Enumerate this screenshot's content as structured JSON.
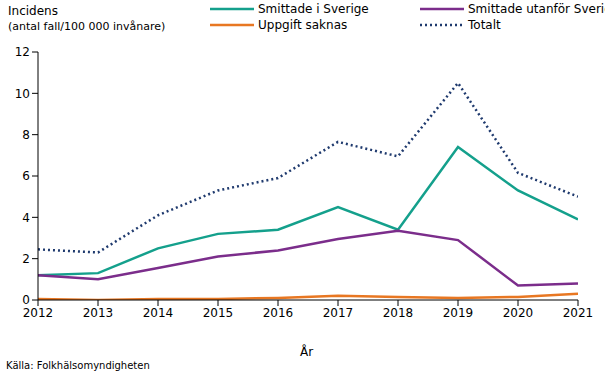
{
  "chart_data": {
    "type": "line",
    "y_label": "Incidens",
    "y_label_note": "(antal fall/100 000 invånare)",
    "x_label": "År",
    "source": "Källa: Folkhälsomyndigheten",
    "x": [
      2012,
      2013,
      2014,
      2015,
      2016,
      2017,
      2018,
      2019,
      2020,
      2021
    ],
    "xlim": [
      2012,
      2021
    ],
    "xticks": [
      2012,
      2013,
      2014,
      2015,
      2016,
      2017,
      2018,
      2019,
      2020,
      2021
    ],
    "ylim": [
      0,
      12
    ],
    "yticks": [
      0,
      2,
      4,
      6,
      8,
      10,
      12
    ],
    "grid": false,
    "legend": "top",
    "series": [
      {
        "name": "Smittade i Sverige",
        "color": "#14a08c",
        "line_style": "solid",
        "values": [
          1.2,
          1.3,
          2.5,
          3.2,
          3.4,
          4.5,
          3.4,
          7.4,
          5.3,
          3.9
        ]
      },
      {
        "name": "Smittade utanför Sverige",
        "color": "#7b2d8b",
        "line_style": "solid",
        "values": [
          1.2,
          1.0,
          1.55,
          2.1,
          2.4,
          2.95,
          3.35,
          2.9,
          0.7,
          0.8
        ]
      },
      {
        "name": "Uppgift saknas",
        "color": "#e87722",
        "line_style": "solid",
        "values": [
          0.05,
          0.0,
          0.05,
          0.05,
          0.1,
          0.2,
          0.15,
          0.1,
          0.15,
          0.3
        ]
      },
      {
        "name": "Totalt",
        "color": "#1f3a6e",
        "line_style": "dotted",
        "values": [
          2.45,
          2.3,
          4.1,
          5.3,
          5.9,
          7.65,
          6.95,
          10.5,
          6.15,
          5.0
        ]
      }
    ]
  }
}
